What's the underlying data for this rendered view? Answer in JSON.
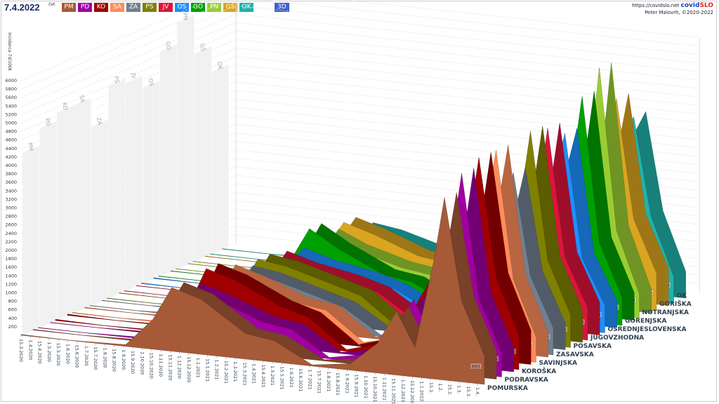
{
  "header": {
    "date": "7.4.2022",
    "weekday": "čet",
    "button_3d": "3D",
    "site": "https://covidslo.net",
    "brand_a": "covid",
    "brand_b": "SLO",
    "author": "Peter Malovrh, ©2020-2022"
  },
  "legend": [
    {
      "code": "PM",
      "color": "#a65a38"
    },
    {
      "code": "PD",
      "color": "#a000a0"
    },
    {
      "code": "KO",
      "color": "#a00000"
    },
    {
      "code": "SA",
      "color": "#ff8c5a"
    },
    {
      "code": "ZA",
      "color": "#708090"
    },
    {
      "code": "PS",
      "color": "#808000"
    },
    {
      "code": "JV",
      "color": "#dc143c"
    },
    {
      "code": "OS",
      "color": "#1e90ff"
    },
    {
      "code": "GO",
      "color": "#00a000"
    },
    {
      "code": "PN",
      "color": "#9acd32"
    },
    {
      "code": "GŠ",
      "color": "#daa520"
    },
    {
      "code": "OK",
      "color": "#20b2aa"
    }
  ],
  "chart_data": {
    "type": "area",
    "ylabel": "incidenca 7d/100k",
    "ylim": [
      0,
      6000
    ],
    "yticks": [
      200,
      400,
      600,
      800,
      1000,
      1200,
      1400,
      1600,
      1800,
      2000,
      2200,
      2400,
      2600,
      2800,
      3000,
      3200,
      3400,
      3600,
      3800,
      4000,
      4200,
      4400,
      4600,
      4800,
      5000,
      5200,
      5400,
      5600,
      5800,
      6000
    ],
    "xticks": [
      "15.3.2020",
      "1.4.2020",
      "15.4.2020",
      "1.5.2020",
      "15.5.2020",
      "1.6.2020",
      "15.6.2020",
      "1.7.2020",
      "15.7.2020",
      "1.8.2020",
      "15.8.2020",
      "1.9.2020",
      "15.9.2020",
      "1.10.2020",
      "15.10.2020",
      "1.11.2020",
      "15.11.2020",
      "1.12.2020",
      "15.12.2020",
      "1.1.2021",
      "15.1.2021",
      "1.2.2021",
      "15.2.2021",
      "1.3.2021",
      "15.3.2021",
      "1.4.2021",
      "15.4.2021",
      "1.5.2021",
      "15.5.2021",
      "1.6.2021",
      "15.6.2021",
      "1.7.2021",
      "15.7.2021",
      "1.8.2021",
      "15.8.2021",
      "1.9.2021",
      "15.9.2021",
      "1.10.2021",
      "15.10.2021",
      "1.11.2021",
      "15.11.2021",
      "1.12.2021",
      "15.12.2021",
      "1.1.2022",
      "15.1.",
      "1.2.",
      "15.2.",
      "1.3.",
      "15.3.",
      "1.4."
    ],
    "dates": [
      "2020-03-15",
      "2020-06-01",
      "2020-09-01",
      "2020-10-15",
      "2020-11-15",
      "2021-01-01",
      "2021-03-15",
      "2021-05-01",
      "2021-07-01",
      "2021-09-01",
      "2021-10-15",
      "2021-11-15",
      "2021-12-15",
      "2022-01-15",
      "2022-02-01",
      "2022-03-01",
      "2022-04-07"
    ],
    "series": [
      {
        "name": "POMURSKA",
        "code": "PM",
        "values": [
          20,
          5,
          40,
          700,
          1500,
          1300,
          600,
          500,
          30,
          150,
          700,
          1500,
          700,
          2800,
          4300,
          1900,
          665
        ]
      },
      {
        "name": "PODRAVSKA",
        "code": "PD",
        "values": [
          10,
          5,
          40,
          500,
          1300,
          1100,
          700,
          600,
          30,
          200,
          900,
          1600,
          800,
          3000,
          4700,
          1800,
          565
        ]
      },
      {
        "name": "KOROŠKA",
        "code": "KO",
        "values": [
          30,
          5,
          30,
          600,
          1600,
          1400,
          900,
          700,
          40,
          300,
          1100,
          1900,
          900,
          3200,
          4900,
          2100,
          805
        ]
      },
      {
        "name": "SAVINJSKA",
        "code": "SA",
        "values": [
          20,
          5,
          50,
          500,
          1400,
          1200,
          800,
          700,
          40,
          250,
          1000,
          1800,
          900,
          3400,
          4900,
          1900,
          584
        ]
      },
      {
        "name": "ZASAVSKA",
        "code": "ZA",
        "values": [
          10,
          5,
          60,
          500,
          1200,
          1100,
          800,
          600,
          40,
          200,
          900,
          1700,
          800,
          3100,
          4200,
          1800,
          633
        ]
      },
      {
        "name": "POSAVSKA",
        "code": "PS",
        "values": [
          10,
          5,
          50,
          500,
          1300,
          1200,
          900,
          700,
          40,
          250,
          1100,
          1700,
          800,
          3300,
          5000,
          2000,
          774
        ]
      },
      {
        "name": "JUGOVZHODNA",
        "code": "JV",
        "values": [
          10,
          5,
          60,
          500,
          1200,
          1000,
          800,
          600,
          40,
          300,
          1000,
          1600,
          800,
          3200,
          4900,
          1900,
          769
        ]
      },
      {
        "name": "OSREDNJESLOVENSKA",
        "code": "OS",
        "values": [
          20,
          5,
          60,
          600,
          1100,
          900,
          700,
          500,
          50,
          250,
          900,
          1500,
          700,
          3600,
          4600,
          1700,
          639
        ]
      },
      {
        "name": "GORENJSKA",
        "code": "GO",
        "values": [
          10,
          5,
          50,
          700,
          1500,
          1100,
          600,
          500,
          50,
          200,
          800,
          1400,
          700,
          3500,
          5300,
          1900,
          654
        ]
      },
      {
        "name": "NOTRANJSKA",
        "code": "PN",
        "values": [
          10,
          5,
          40,
          500,
          1200,
          900,
          600,
          500,
          40,
          200,
          800,
          1400,
          700,
          3400,
          5800,
          2000,
          563
        ]
      },
      {
        "name": "GORIŠKA",
        "code": "GŠ",
        "values": [
          10,
          5,
          40,
          600,
          1300,
          1100,
          700,
          600,
          40,
          200,
          900,
          1500,
          800,
          3600,
          4900,
          2100,
          886
        ]
      },
      {
        "name": "OK",
        "code": "OK",
        "values": [
          10,
          5,
          40,
          400,
          1000,
          900,
          600,
          500,
          40,
          200,
          800,
          1400,
          800,
          3800,
          4300,
          2000,
          629
        ]
      }
    ]
  }
}
